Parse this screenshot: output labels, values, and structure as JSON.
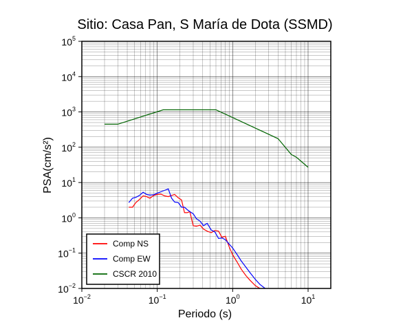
{
  "chart_data": {
    "type": "line",
    "title": "Sitio: Casa Pan, S María de Dota (SSMD)",
    "xlabel": "Periodo (s)",
    "ylabel": "PSA(cm/s²)",
    "xscale": "log",
    "yscale": "log",
    "xlim": [
      0.01,
      20
    ],
    "ylim": [
      0.01,
      100000
    ],
    "grid": true,
    "legend_position": "bottom-left",
    "x_ticks": [
      {
        "value": 0.01,
        "base": "10",
        "exp": "−2"
      },
      {
        "value": 0.1,
        "base": "10",
        "exp": "−1"
      },
      {
        "value": 1,
        "base": "10",
        "exp": "0"
      },
      {
        "value": 10,
        "base": "10",
        "exp": "1"
      }
    ],
    "y_ticks": [
      {
        "value": 0.01,
        "base": "10",
        "exp": "−2"
      },
      {
        "value": 0.1,
        "base": "10",
        "exp": "−1"
      },
      {
        "value": 1,
        "base": "10",
        "exp": "0"
      },
      {
        "value": 10,
        "base": "10",
        "exp": "1"
      },
      {
        "value": 100,
        "base": "10",
        "exp": "2"
      },
      {
        "value": 1000,
        "base": "10",
        "exp": "3"
      },
      {
        "value": 10000,
        "base": "10",
        "exp": "4"
      },
      {
        "value": 100000,
        "base": "10",
        "exp": "5"
      }
    ],
    "series": [
      {
        "name": "Comp NS",
        "color": "#ff0000",
        "x": [
          0.042,
          0.047,
          0.052,
          0.058,
          0.065,
          0.072,
          0.08,
          0.09,
          0.1,
          0.112,
          0.125,
          0.14,
          0.155,
          0.17,
          0.19,
          0.21,
          0.23,
          0.25,
          0.27,
          0.3,
          0.33,
          0.37,
          0.41,
          0.46,
          0.52,
          0.58,
          0.65,
          0.72,
          0.8,
          0.9,
          1.0,
          1.15,
          1.3,
          1.5,
          1.7,
          2.0,
          2.3
        ],
        "y": [
          2.0,
          2.0,
          2.7,
          3.3,
          4.2,
          4.0,
          3.6,
          4.3,
          4.6,
          4.7,
          4.2,
          4.0,
          4.3,
          4.6,
          3.7,
          3.2,
          1.4,
          1.4,
          1.5,
          0.6,
          0.58,
          0.62,
          0.48,
          0.42,
          0.38,
          0.44,
          0.42,
          0.28,
          0.3,
          0.15,
          0.09,
          0.055,
          0.035,
          0.023,
          0.017,
          0.012,
          0.01
        ]
      },
      {
        "name": "Comp EW",
        "color": "#0000ff",
        "x": [
          0.042,
          0.047,
          0.052,
          0.058,
          0.065,
          0.072,
          0.08,
          0.09,
          0.1,
          0.112,
          0.125,
          0.14,
          0.155,
          0.17,
          0.19,
          0.21,
          0.23,
          0.25,
          0.27,
          0.3,
          0.33,
          0.37,
          0.41,
          0.46,
          0.52,
          0.58,
          0.65,
          0.72,
          0.8,
          0.9,
          1.0,
          1.15,
          1.3,
          1.5,
          1.7,
          2.0,
          2.3,
          2.7
        ],
        "y": [
          2.7,
          3.6,
          3.8,
          4.3,
          5.3,
          4.6,
          4.4,
          4.5,
          5.0,
          5.5,
          6.0,
          6.6,
          3.6,
          2.8,
          2.7,
          2.0,
          2.0,
          1.7,
          1.5,
          1.3,
          0.95,
          0.8,
          0.6,
          0.7,
          0.45,
          0.4,
          0.26,
          0.27,
          0.24,
          0.18,
          0.14,
          0.09,
          0.06,
          0.04,
          0.028,
          0.018,
          0.013,
          0.01
        ]
      },
      {
        "name": "CSCR 2010",
        "color": "#006400",
        "x": [
          0.02,
          0.03,
          0.12,
          0.6,
          4.0,
          6.0,
          7.0,
          10.0
        ],
        "y": [
          450,
          450,
          1150,
          1150,
          175,
          62,
          52,
          27
        ]
      }
    ]
  }
}
